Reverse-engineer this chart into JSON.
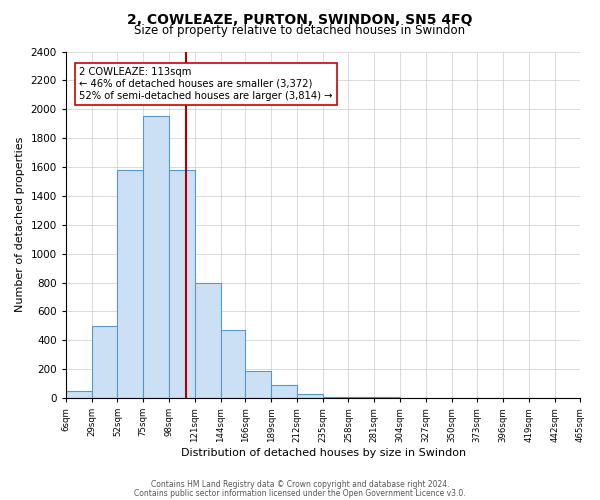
{
  "title": "2, COWLEAZE, PURTON, SWINDON, SN5 4FQ",
  "subtitle": "Size of property relative to detached houses in Swindon",
  "xlabel": "Distribution of detached houses by size in Swindon",
  "ylabel": "Number of detached properties",
  "bin_edges": [
    6,
    29,
    52,
    75,
    98,
    121,
    144,
    166,
    189,
    212,
    235,
    258,
    281,
    304,
    327,
    350,
    373,
    396,
    419,
    442,
    465
  ],
  "bar_heights": [
    50,
    500,
    1580,
    1950,
    1580,
    800,
    470,
    185,
    90,
    30,
    10,
    10,
    5,
    0,
    0,
    0,
    0,
    0,
    0,
    0
  ],
  "bar_color": "#cce0f5",
  "bar_edge_color": "#5599cc",
  "property_line_x": 113,
  "property_line_color": "#aa0000",
  "annotation_box_color": "#ffffff",
  "annotation_box_edge_color": "#cc0000",
  "annotation_text_line1": "2 COWLEAZE: 113sqm",
  "annotation_text_line2": "← 46% of detached houses are smaller (3,372)",
  "annotation_text_line3": "52% of semi-detached houses are larger (3,814) →",
  "ylim": [
    0,
    2400
  ],
  "yticks": [
    0,
    200,
    400,
    600,
    800,
    1000,
    1200,
    1400,
    1600,
    1800,
    2000,
    2200,
    2400
  ],
  "tick_labels": [
    "6sqm",
    "29sqm",
    "52sqm",
    "75sqm",
    "98sqm",
    "121sqm",
    "144sqm",
    "166sqm",
    "189sqm",
    "212sqm",
    "235sqm",
    "258sqm",
    "281sqm",
    "304sqm",
    "327sqm",
    "350sqm",
    "373sqm",
    "396sqm",
    "419sqm",
    "442sqm",
    "465sqm"
  ],
  "footer_line1": "Contains HM Land Registry data © Crown copyright and database right 2024.",
  "footer_line2": "Contains public sector information licensed under the Open Government Licence v3.0.",
  "background_color": "#ffffff",
  "grid_color": "#cccccc",
  "title_fontsize": 10,
  "subtitle_fontsize": 8.5,
  "ylabel_fontsize": 8,
  "xlabel_fontsize": 8,
  "footer_fontsize": 5.5,
  "footer_color": "#555555"
}
